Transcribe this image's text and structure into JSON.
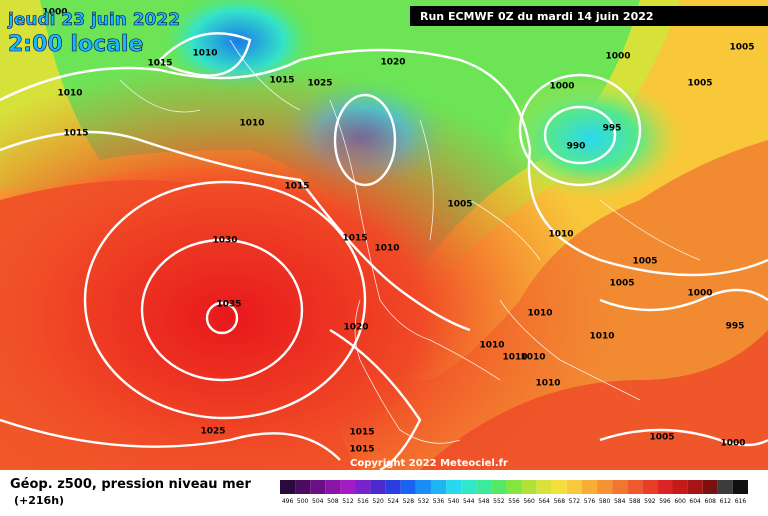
{
  "header": {
    "title": "jeudi 23 juin 2022",
    "subtitle": "2:00 locale",
    "run": "Run ECMWF 0Z du mardi 14 juin 2022"
  },
  "footer": {
    "title": "Géop. z500, pression niveau mer",
    "lead": "(+216h)",
    "copyright": "Copyright 2022 Meteociel.fr"
  },
  "isobar_labels": [
    1000,
    1010,
    1015,
    1015,
    1010,
    1025,
    1020,
    1010,
    1015,
    1015,
    1000,
    995,
    990,
    1000,
    1005,
    1005,
    1005,
    1010,
    1015,
    1010,
    1030,
    1035,
    1020,
    1005,
    1005,
    1000,
    995,
    1010,
    1010,
    1010,
    1010,
    1010,
    1010,
    1025,
    1015,
    1015,
    1005,
    1000
  ],
  "colorbar": {
    "labels": [
      496,
      500,
      504,
      508,
      512,
      516,
      520,
      524,
      528,
      532,
      536,
      540,
      544,
      548,
      552,
      556,
      560,
      564,
      568,
      572,
      576,
      580,
      584,
      588,
      592,
      596,
      600,
      604,
      608,
      612,
      616
    ],
    "colors": [
      "#2a0a3a",
      "#4b0b5e",
      "#6a0f86",
      "#8a14a8",
      "#a31bc2",
      "#7a22c9",
      "#4b2bd0",
      "#2a3fe0",
      "#1a62f0",
      "#1a8cf5",
      "#1fb5f5",
      "#27d8ef",
      "#2fe8c8",
      "#3bea9a",
      "#55e866",
      "#83e442",
      "#b2e23a",
      "#d8e23a",
      "#f4e03c",
      "#f8c93a",
      "#f8ae36",
      "#f69234",
      "#f27530",
      "#ee5a2c",
      "#e83e28",
      "#dc2424",
      "#c41a1a",
      "#a61414",
      "#7a1010",
      "#3c3c3c",
      "#101010"
    ]
  }
}
